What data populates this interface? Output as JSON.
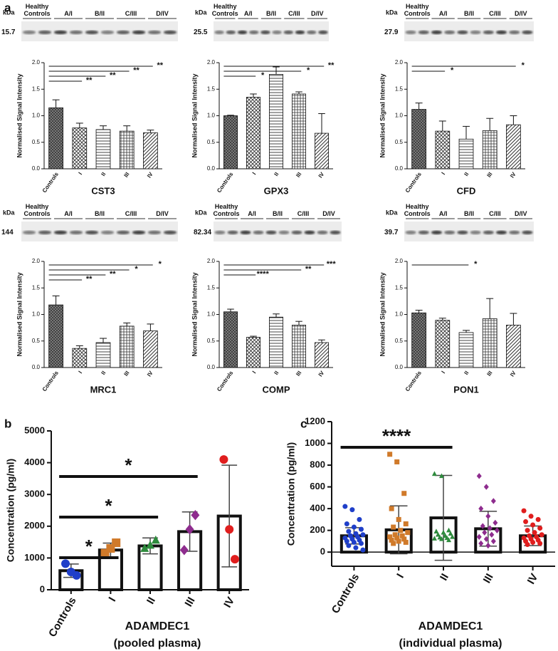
{
  "chart_data": [
    {
      "type": "bar",
      "panel": "a",
      "title": "CST3",
      "ylabel": "Normalised Signal Intensity",
      "blot": {
        "unit": "kDa",
        "marker": "15.7",
        "lanes": [
          "Healthy Controls",
          "A/I",
          "B/II",
          "C/III",
          "D/IV"
        ]
      },
      "categories": [
        "Controls",
        "I",
        "II",
        "III",
        "IV"
      ],
      "values": [
        1.15,
        0.77,
        0.74,
        0.71,
        0.68
      ],
      "errors": [
        0.15,
        0.09,
        0.07,
        0.1,
        0.05
      ],
      "ylim": [
        0,
        2
      ],
      "yticks": [
        {
          "value": 0,
          "label": "0.0"
        },
        0.5,
        {
          "value": 1,
          "label": "1.0"
        },
        1.5,
        {
          "value": 2,
          "label": "2.0"
        }
      ],
      "significance": [
        {
          "span": [
            "Controls",
            "IV"
          ],
          "label": "**"
        },
        {
          "span": [
            "Controls",
            "III"
          ],
          "label": "**"
        },
        {
          "span": [
            "Controls",
            "II"
          ],
          "label": "**"
        },
        {
          "span": [
            "Controls",
            "I"
          ],
          "label": "**"
        }
      ]
    },
    {
      "type": "bar",
      "title": "GPX3",
      "ylabel": "Normalised Signal Intensity",
      "blot": {
        "unit": "kDa",
        "marker": "25.5",
        "lanes": [
          "Healthy Controls",
          "A/I",
          "B/II",
          "C/III",
          "D/IV"
        ]
      },
      "categories": [
        "Controls",
        "I",
        "II",
        "III",
        "IV"
      ],
      "values": [
        1.0,
        1.35,
        1.78,
        1.41,
        0.67
      ],
      "errors": [
        0.01,
        0.06,
        0.14,
        0.04,
        0.37
      ],
      "ylim": [
        0,
        2
      ],
      "yticks": [
        {
          "value": 0,
          "label": "0.0"
        },
        0.5,
        {
          "value": 1,
          "label": "1.0"
        },
        1.5,
        {
          "value": 2,
          "label": "2.0"
        }
      ],
      "significance": [
        {
          "span": [
            "Controls",
            "IV"
          ],
          "label": "**"
        },
        {
          "span": [
            "Controls",
            "III"
          ],
          "label": "*"
        },
        {
          "span": [
            "Controls",
            "I"
          ],
          "label": "*"
        }
      ]
    },
    {
      "type": "bar",
      "title": "CFD",
      "ylabel": "Normalised Signal Intensity",
      "blot": {
        "unit": "kDa",
        "marker": "27.9",
        "lanes": [
          "Healthy Controls",
          "A/I",
          "B/II",
          "C/III",
          "D/IV"
        ]
      },
      "categories": [
        "Controls",
        "I",
        "II",
        "III",
        "IV"
      ],
      "values": [
        1.12,
        0.71,
        0.56,
        0.72,
        0.83
      ],
      "errors": [
        0.12,
        0.19,
        0.24,
        0.23,
        0.17
      ],
      "ylim": [
        0,
        2
      ],
      "yticks": [
        {
          "value": 0,
          "label": "0.0"
        },
        0.5,
        {
          "value": 1,
          "label": "1.0"
        },
        1.5,
        {
          "value": 2,
          "label": "2.0"
        }
      ],
      "significance": [
        {
          "span": [
            "Controls",
            "IV"
          ],
          "label": "*"
        },
        {
          "span": [
            "Controls",
            "I"
          ],
          "label": "*"
        }
      ]
    },
    {
      "type": "bar",
      "title": "MRC1",
      "ylabel": "Normalised Signal Intensity",
      "blot": {
        "unit": "kDa",
        "marker": "144",
        "lanes": [
          "Healthy Controls",
          "A/I",
          "B/II",
          "C/III",
          "D/IV"
        ]
      },
      "categories": [
        "Controls",
        "I",
        "II",
        "III",
        "IV"
      ],
      "values": [
        1.18,
        0.36,
        0.47,
        0.78,
        0.69
      ],
      "errors": [
        0.17,
        0.05,
        0.08,
        0.06,
        0.13
      ],
      "ylim": [
        0,
        2
      ],
      "yticks": [
        {
          "value": 0,
          "label": "0.0"
        },
        0.5,
        {
          "value": 1,
          "label": "1.0"
        },
        1.5,
        {
          "value": 2,
          "label": "2.0"
        }
      ],
      "significance": [
        {
          "span": [
            "Controls",
            "IV"
          ],
          "label": "*"
        },
        {
          "span": [
            "Controls",
            "III"
          ],
          "label": "*"
        },
        {
          "span": [
            "Controls",
            "II"
          ],
          "label": "**"
        },
        {
          "span": [
            "Controls",
            "I"
          ],
          "label": "**"
        }
      ]
    },
    {
      "type": "bar",
      "title": "COMP",
      "ylabel": "Normalised Signal Intensity",
      "blot": {
        "unit": "kDa",
        "marker": "82.34",
        "lanes": [
          "Healthy Controls",
          "A/I",
          "B/II",
          "C/III",
          "D/IV"
        ]
      },
      "categories": [
        "Controls",
        "I",
        "II",
        "III",
        "IV"
      ],
      "values": [
        1.05,
        0.57,
        0.95,
        0.8,
        0.47
      ],
      "errors": [
        0.05,
        0.02,
        0.06,
        0.07,
        0.05
      ],
      "ylim": [
        0,
        2
      ],
      "yticks": [
        {
          "value": 0,
          "label": "0.0"
        },
        0.5,
        {
          "value": 1,
          "label": "1.0"
        },
        1.5,
        {
          "value": 2,
          "label": "2.0"
        }
      ],
      "significance": [
        {
          "span": [
            "Controls",
            "IV"
          ],
          "label": "***"
        },
        {
          "span": [
            "Controls",
            "III"
          ],
          "label": "**"
        },
        {
          "span": [
            "Controls",
            "I"
          ],
          "label": "****"
        }
      ]
    },
    {
      "type": "bar",
      "title": "PON1",
      "ylabel": "Normalised Signal Intensity",
      "blot": {
        "unit": "kDa",
        "marker": "39.7",
        "lanes": [
          "Healthy Controls",
          "A/I",
          "B/II",
          "C/III",
          "D/IV"
        ]
      },
      "categories": [
        "Controls",
        "I",
        "II",
        "III",
        "IV"
      ],
      "values": [
        1.03,
        0.89,
        0.66,
        0.92,
        0.8
      ],
      "errors": [
        0.05,
        0.04,
        0.04,
        0.38,
        0.22
      ],
      "ylim": [
        0,
        2
      ],
      "yticks": [
        {
          "value": 0,
          "label": "0.0"
        },
        0.5,
        {
          "value": 1,
          "label": "1.0"
        },
        1.5,
        {
          "value": 2,
          "label": "2.0"
        }
      ],
      "significance": [
        {
          "span": [
            "Controls",
            "II"
          ],
          "label": "*"
        }
      ]
    },
    {
      "type": "bar_scatter",
      "panel": "b",
      "ylabel": "Concentration (pg/ml)",
      "xlabel_lines": [
        "ADAMDEC1",
        "(pooled plasma)"
      ],
      "categories": [
        "Controls",
        "I",
        "II",
        "III",
        "IV"
      ],
      "values": [
        600,
        1250,
        1380,
        1830,
        2320
      ],
      "errors": [
        210,
        220,
        250,
        620,
        1600
      ],
      "colors": [
        "#1f3fc9",
        "#d07a2a",
        "#2e8b3d",
        "#8e2c8e",
        "#e01e1e"
      ],
      "points": [
        [
          820,
          560,
          450
        ],
        [
          1150,
          1300,
          1480
        ],
        [
          1300,
          1400,
          1560
        ],
        [
          1250,
          1900,
          2350
        ],
        [
          4100,
          1900,
          960
        ]
      ],
      "ylim": [
        0,
        5000
      ],
      "yticks": [
        0,
        1000,
        2000,
        3000,
        4000,
        5000
      ],
      "significance": [
        {
          "span": [
            "Controls",
            "III"
          ],
          "label": "*"
        },
        {
          "span": [
            "Controls",
            "II"
          ],
          "label": "*"
        },
        {
          "span": [
            "Controls",
            "I"
          ],
          "label": "*"
        }
      ]
    },
    {
      "type": "bar_scatter",
      "panel": "c",
      "ylabel": "Concentration (pg/ml)",
      "xlabel_lines": [
        "ADAMDEC1",
        "(individual plasma)"
      ],
      "categories": [
        "Controls",
        "I",
        "II",
        "III",
        "IV"
      ],
      "values": [
        150,
        205,
        315,
        215,
        150
      ],
      "errors": [
        75,
        220,
        390,
        160,
        90
      ],
      "colors": [
        "#1f3fc9",
        "#d07a2a",
        "#2e8b3d",
        "#8e2c8e",
        "#e01e1e"
      ],
      "points": [
        [
          420,
          390,
          300,
          260,
          230,
          210,
          190,
          170,
          160,
          150,
          140,
          130,
          120,
          110,
          100,
          90,
          80,
          60,
          40,
          20
        ],
        [
          900,
          830,
          540,
          400,
          300,
          260,
          230,
          200,
          180,
          160,
          150,
          140,
          130,
          120,
          110,
          100,
          90,
          80
        ],
        [
          720,
          700,
          200,
          190,
          180,
          170,
          160,
          150,
          140,
          135,
          130,
          125,
          120,
          110
        ],
        [
          700,
          600,
          470,
          400,
          330,
          270,
          240,
          220,
          200,
          180,
          160,
          140,
          120,
          100,
          80,
          60
        ],
        [
          380,
          330,
          300,
          280,
          250,
          220,
          200,
          180,
          160,
          150,
          140,
          130,
          120,
          110,
          100,
          90,
          80,
          70
        ]
      ],
      "ylim": [
        -130,
        1200
      ],
      "yticks": [
        0,
        200,
        400,
        600,
        800,
        1000,
        1200
      ],
      "significance": [
        {
          "span": [
            "Controls",
            "II"
          ],
          "label": "****"
        }
      ]
    }
  ]
}
